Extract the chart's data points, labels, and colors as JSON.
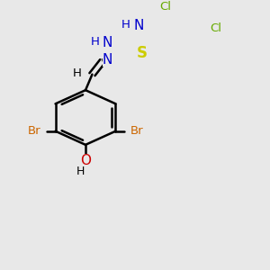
{
  "background_color": "#e8e8e8",
  "bond_color": "#000000",
  "bond_width": 1.8,
  "figsize": [
    3.0,
    3.0
  ],
  "dpi": 100,
  "colors": {
    "N": "#0000cc",
    "S": "#cccc00",
    "O": "#cc0000",
    "Br": "#cc6600",
    "Cl": "#66aa00",
    "H": "#000000",
    "C": "#000000"
  }
}
